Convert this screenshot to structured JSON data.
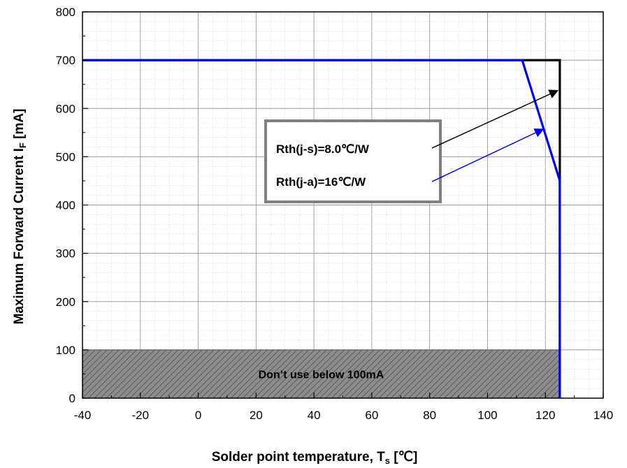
{
  "chart_data": {
    "type": "line",
    "title": "",
    "xlabel_main": "Solder point temperature, T",
    "xlabel_sub": "s",
    "xlabel_unit": " [℃]",
    "ylabel_main": "Maximum Forward Current  I",
    "ylabel_sub": "F",
    "ylabel_unit": " [mA]",
    "xlim": [
      -40,
      140
    ],
    "ylim": [
      0,
      800
    ],
    "xticks": [
      "-40",
      "-20",
      "0",
      "20",
      "40",
      "60",
      "80",
      "100",
      "120",
      "140"
    ],
    "yticks": [
      "0",
      "100",
      "200",
      "300",
      "400",
      "500",
      "600",
      "700",
      "800"
    ],
    "grid": true,
    "series": [
      {
        "label": "Rth(j-s)=8.0℃/W",
        "color": "#000000",
        "x": [
          -40,
          125,
          125
        ],
        "y": [
          700,
          700,
          0
        ]
      },
      {
        "label": "Rth(j-a)=16℃/W",
        "color": "#0000ff",
        "x": [
          -40,
          112,
          125,
          125
        ],
        "y": [
          700,
          700,
          450,
          0
        ]
      }
    ],
    "restricted_region": {
      "label": "Don’t use below 100mA",
      "x_range": [
        -40,
        125
      ],
      "y_range": [
        0,
        100
      ],
      "color": "#808080"
    },
    "arrow_targets": [
      {
        "series": 0,
        "x": 125,
        "y": 640
      },
      {
        "series": 1,
        "x": 120,
        "y": 560
      }
    ]
  }
}
